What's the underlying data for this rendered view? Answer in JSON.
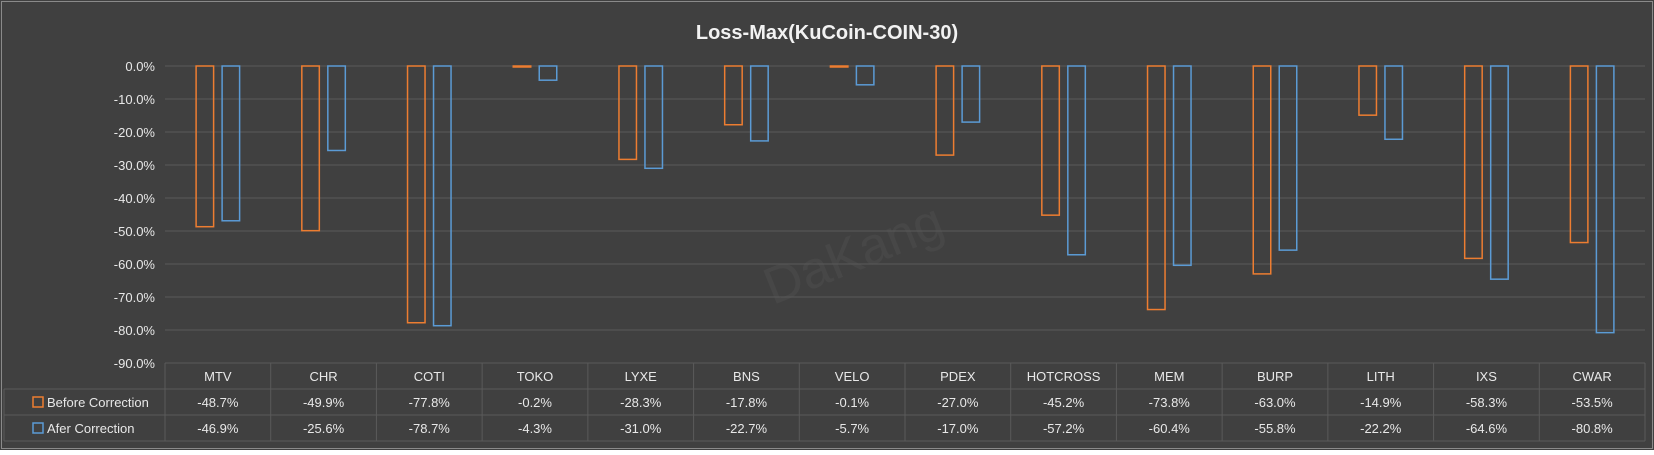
{
  "chart_data": {
    "type": "bar",
    "title": "Loss-Max(KuCoin-COIN-30)",
    "categories": [
      "MTV",
      "CHR",
      "COTI",
      "TOKO",
      "LYXE",
      "BNS",
      "VELO",
      "PDEX",
      "HOTCROSS",
      "MEM",
      "BURP",
      "LITH",
      "IXS",
      "CWAR"
    ],
    "series": [
      {
        "name": "Before Correction",
        "color": "#ed7d31",
        "values": [
          -48.7,
          -49.9,
          -77.8,
          -0.2,
          -28.3,
          -17.8,
          -0.1,
          -27.0,
          -45.2,
          -73.8,
          -63.0,
          -14.9,
          -58.3,
          -53.5
        ],
        "labels": [
          "-48.7%",
          "-49.9%",
          "-77.8%",
          "-0.2%",
          "-28.3%",
          "-17.8%",
          "-0.1%",
          "-27.0%",
          "-45.2%",
          "-73.8%",
          "-63.0%",
          "-14.9%",
          "-58.3%",
          "-53.5%"
        ]
      },
      {
        "name": "Afer Correction",
        "color": "#5b9bd5",
        "values": [
          -46.9,
          -25.6,
          -78.7,
          -4.3,
          -31.0,
          -22.7,
          -5.7,
          -17.0,
          -57.2,
          -60.4,
          -55.8,
          -22.2,
          -64.6,
          -80.8
        ],
        "labels": [
          "-46.9%",
          "-25.6%",
          "-78.7%",
          "-4.3%",
          "-31.0%",
          "-22.7%",
          "-5.7%",
          "-17.0%",
          "-57.2%",
          "-60.4%",
          "-55.8%",
          "-22.2%",
          "-64.6%",
          "-80.8%"
        ]
      }
    ],
    "ylim": [
      -90,
      0
    ],
    "yticks": [
      "0.0%",
      "-10.0%",
      "-20.0%",
      "-30.0%",
      "-40.0%",
      "-50.0%",
      "-60.0%",
      "-70.0%",
      "-80.0%",
      "-90.0%"
    ],
    "grid": true,
    "legend": "data table",
    "watermark": "DaKang",
    "colors": {
      "background": "#404040",
      "gridline": "#5a5a5a",
      "text": "#e8e8e8"
    }
  }
}
